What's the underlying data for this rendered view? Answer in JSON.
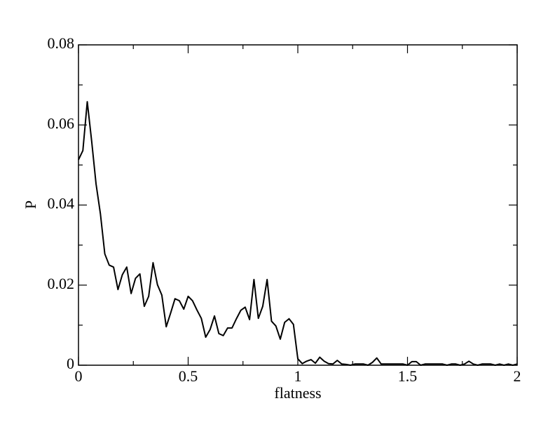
{
  "chart_data": {
    "type": "line",
    "xlabel": "flatness",
    "ylabel": "P",
    "x": [
      0,
      0.02,
      0.04,
      0.06,
      0.08,
      0.1,
      0.12,
      0.14,
      0.16,
      0.18,
      0.2,
      0.22,
      0.24,
      0.26,
      0.28,
      0.3,
      0.32,
      0.34,
      0.36,
      0.38,
      0.4,
      0.42,
      0.44,
      0.46,
      0.48,
      0.5,
      0.52,
      0.54,
      0.56,
      0.58,
      0.6,
      0.62,
      0.64,
      0.66,
      0.68,
      0.7,
      0.72,
      0.74,
      0.76,
      0.78,
      0.8,
      0.82,
      0.84,
      0.86,
      0.88,
      0.9,
      0.92,
      0.94,
      0.96,
      0.98,
      1,
      1.02,
      1.04,
      1.06,
      1.08,
      1.1,
      1.12,
      1.14,
      1.16,
      1.18,
      1.2,
      1.22,
      1.24,
      1.26,
      1.28,
      1.3,
      1.32,
      1.34,
      1.36,
      1.38,
      1.4,
      1.42,
      1.44,
      1.46,
      1.48,
      1.5,
      1.52,
      1.54,
      1.56,
      1.58,
      1.6,
      1.62,
      1.64,
      1.66,
      1.68,
      1.7,
      1.72,
      1.74,
      1.76,
      1.78,
      1.8,
      1.82,
      1.84,
      1.86,
      1.88,
      1.9,
      1.92,
      1.94,
      1.96,
      1.98,
      2
    ],
    "series": [
      {
        "color": "#000000",
        "values": [
          0.0513,
          0.0536,
          0.0658,
          0.056,
          0.0453,
          0.0378,
          0.0278,
          0.025,
          0.0245,
          0.0189,
          0.0226,
          0.0245,
          0.0179,
          0.0217,
          0.0228,
          0.0147,
          0.0172,
          0.0256,
          0.0201,
          0.0175,
          0.0096,
          0.013,
          0.0166,
          0.0161,
          0.014,
          0.0172,
          0.0161,
          0.0138,
          0.0117,
          0.007,
          0.0089,
          0.0123,
          0.0079,
          0.0074,
          0.0093,
          0.0093,
          0.0116,
          0.0137,
          0.0145,
          0.0114,
          0.0214,
          0.0117,
          0.0147,
          0.0214,
          0.011,
          0.0098,
          0.0065,
          0.0107,
          0.0116,
          0.0102,
          0.0016,
          0.0004,
          0.001,
          0.0014,
          0.0005,
          0.002,
          0.001,
          0.0004,
          0.0003,
          0.0012,
          0.0003,
          0.0002,
          0,
          0.0003,
          0.0003,
          0.0003,
          0,
          0.0007,
          0.0018,
          0.0003,
          0.0003,
          0.0003,
          0.0003,
          0.0003,
          0.0003,
          0,
          0.0009,
          0.0009,
          0,
          0.0003,
          0.0003,
          0.0003,
          0.0003,
          0.0003,
          0,
          0.0003,
          0.0003,
          0,
          0.0003,
          0.001,
          0.0003,
          0,
          0.0003,
          0.0003,
          0.0003,
          0,
          0.0003,
          0,
          0.0003,
          0,
          0.0003
        ]
      }
    ],
    "xlim": [
      0,
      2
    ],
    "xticks": [
      0,
      0.5,
      1,
      1.5,
      2
    ],
    "xminorticks": [
      0.25,
      0.75,
      1.25,
      1.75
    ],
    "ylim": [
      0,
      0.08
    ],
    "yticks": [
      0,
      0.02,
      0.04,
      0.06,
      0.08
    ],
    "yminorticks": [
      0.01,
      0.03,
      0.05,
      0.07
    ],
    "grid": false
  }
}
